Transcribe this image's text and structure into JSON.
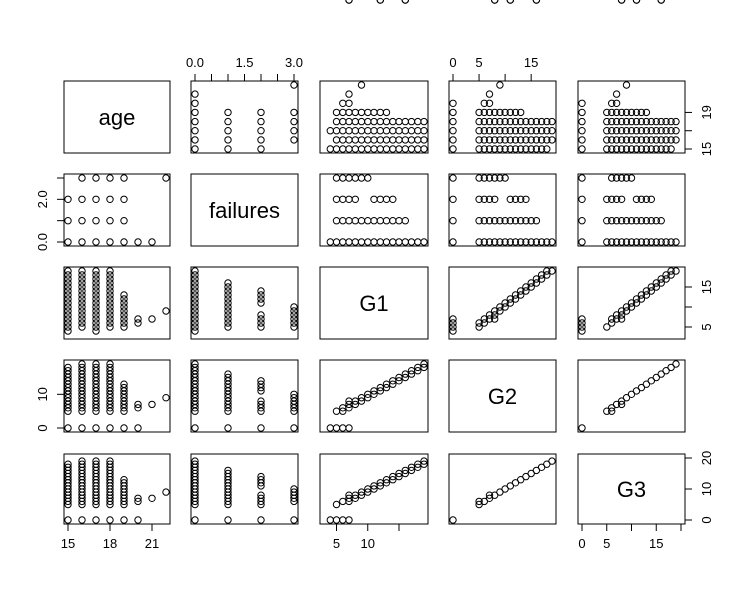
{
  "chart_data": {
    "type": "scatter",
    "title": "",
    "variables": [
      {
        "name": "age",
        "range": [
          15,
          22
        ],
        "bottom_ticks": [
          "15",
          "18",
          "21"
        ],
        "bottom_tick_values": [
          15,
          18,
          21
        ],
        "right_ticks": [
          "15",
          "19"
        ],
        "right_tick_values": [
          15,
          19
        ],
        "minor_right_ticks": [
          17
        ]
      },
      {
        "name": "failures",
        "range": [
          0,
          3
        ],
        "top_ticks": [
          "0.0",
          "1.5",
          "3.0"
        ],
        "top_tick_values": [
          0,
          1.5,
          3
        ],
        "minor_top_ticks": [
          0.5,
          1,
          2,
          2.5
        ],
        "left_ticks": [
          "0.0",
          "2.0"
        ],
        "left_tick_values": [
          0,
          2
        ],
        "minor_left_ticks": [
          1,
          3
        ]
      },
      {
        "name": "G1",
        "range": [
          3,
          19
        ],
        "bottom_ticks": [
          "5",
          "10"
        ],
        "bottom_tick_values": [
          5,
          10
        ],
        "minor_bottom_ticks": [
          15
        ],
        "right_ticks": [
          "5",
          "15"
        ],
        "right_tick_values": [
          5,
          15
        ],
        "minor_right_ticks": [
          10
        ]
      },
      {
        "name": "G2",
        "range": [
          0,
          19
        ],
        "top_ticks": [
          "0",
          "5",
          "15"
        ],
        "top_tick_values": [
          0,
          5,
          15
        ],
        "minor_top_ticks": [
          10
        ],
        "left_ticks": [
          "0",
          "10"
        ],
        "left_tick_values": [
          0,
          10
        ]
      },
      {
        "name": "G3",
        "range": [
          0,
          20
        ],
        "bottom_ticks": [
          "0",
          "5",
          "15"
        ],
        "bottom_tick_values": [
          0,
          5,
          15
        ],
        "minor_bottom_ticks": [
          10,
          20
        ],
        "right_ticks": [
          "0",
          "10",
          "20"
        ],
        "right_tick_values": [
          0,
          10,
          20
        ]
      }
    ],
    "observations": {
      "age": [
        15,
        15,
        15,
        15,
        15,
        15,
        15,
        15,
        15,
        15,
        15,
        15,
        15,
        15,
        15,
        15,
        15,
        15,
        15,
        15,
        15,
        15,
        15,
        15,
        15,
        15,
        15,
        15,
        15,
        15,
        15,
        15,
        15,
        15,
        15,
        15,
        15,
        15,
        15,
        15,
        15,
        15,
        15,
        16,
        16,
        16,
        16,
        16,
        16,
        16,
        16,
        16,
        16,
        16,
        16,
        16,
        16,
        16,
        16,
        16,
        16,
        16,
        16,
        16,
        16,
        16,
        16,
        16,
        16,
        16,
        16,
        16,
        16,
        16,
        16,
        16,
        16,
        16,
        16,
        16,
        16,
        16,
        16,
        16,
        16,
        16,
        16,
        16,
        16,
        16,
        16,
        16,
        16,
        16,
        16,
        16,
        16,
        16,
        17,
        17,
        17,
        17,
        17,
        17,
        17,
        17,
        17,
        17,
        17,
        17,
        17,
        17,
        17,
        17,
        17,
        17,
        17,
        17,
        17,
        17,
        17,
        17,
        17,
        17,
        17,
        17,
        17,
        17,
        17,
        17,
        17,
        17,
        17,
        17,
        17,
        17,
        17,
        17,
        17,
        17,
        17,
        17,
        17,
        17,
        17,
        17,
        17,
        17,
        17,
        17,
        17,
        17,
        17,
        17,
        17,
        17,
        17,
        18,
        18,
        18,
        18,
        18,
        18,
        18,
        18,
        18,
        18,
        18,
        18,
        18,
        18,
        18,
        18,
        18,
        18,
        18,
        18,
        18,
        18,
        18,
        18,
        18,
        18,
        18,
        18,
        18,
        18,
        18,
        18,
        18,
        18,
        18,
        18,
        18,
        18,
        19,
        19,
        19,
        19,
        19,
        19,
        19,
        19,
        19,
        19,
        19,
        19,
        19,
        19,
        19,
        19,
        19,
        19,
        20,
        20,
        20,
        21,
        22
      ],
      "failures": [
        0,
        0,
        0,
        0,
        0,
        0,
        0,
        0,
        0,
        0,
        0,
        0,
        0,
        0,
        0,
        0,
        0,
        0,
        0,
        0,
        0,
        0,
        0,
        0,
        0,
        0,
        0,
        0,
        0,
        0,
        0,
        0,
        0,
        0,
        0,
        0,
        0,
        0,
        0,
        0,
        0,
        1,
        2,
        0,
        0,
        0,
        0,
        0,
        0,
        0,
        0,
        0,
        0,
        0,
        0,
        0,
        0,
        0,
        0,
        0,
        0,
        0,
        0,
        0,
        0,
        0,
        0,
        0,
        0,
        0,
        0,
        0,
        0,
        0,
        0,
        0,
        0,
        0,
        0,
        0,
        0,
        0,
        0,
        0,
        0,
        0,
        0,
        0,
        0,
        1,
        1,
        2,
        2,
        2,
        3,
        3,
        3,
        3,
        0,
        0,
        0,
        0,
        0,
        0,
        0,
        0,
        0,
        0,
        0,
        0,
        0,
        0,
        0,
        0,
        0,
        0,
        0,
        0,
        0,
        0,
        0,
        0,
        0,
        0,
        0,
        0,
        0,
        0,
        0,
        0,
        0,
        0,
        0,
        0,
        0,
        0,
        0,
        0,
        0,
        0,
        0,
        0,
        1,
        1,
        1,
        1,
        1,
        1,
        1,
        1,
        2,
        2,
        2,
        3,
        3,
        3,
        3,
        0,
        0,
        0,
        0,
        0,
        0,
        0,
        0,
        0,
        0,
        0,
        0,
        0,
        0,
        0,
        0,
        0,
        0,
        0,
        0,
        0,
        1,
        1,
        1,
        1,
        1,
        1,
        1,
        1,
        1,
        1,
        2,
        2,
        2,
        2,
        3,
        3,
        3,
        0,
        0,
        0,
        0,
        0,
        0,
        0,
        0,
        0,
        1,
        1,
        1,
        1,
        1,
        2,
        2,
        3,
        3,
        0,
        0,
        0,
        0,
        3
      ],
      "G1": [
        4,
        5,
        6,
        7,
        8,
        9,
        10,
        11,
        12,
        13,
        14,
        15,
        16,
        17,
        18,
        19,
        7,
        8,
        9,
        10,
        11,
        12,
        13,
        14,
        15,
        16,
        17,
        8,
        9,
        10,
        11,
        12,
        13,
        14,
        15,
        10,
        11,
        12,
        6,
        5,
        18,
        9,
        7,
        5,
        6,
        7,
        8,
        9,
        10,
        11,
        12,
        13,
        14,
        15,
        16,
        17,
        18,
        19,
        7,
        8,
        9,
        10,
        11,
        12,
        13,
        14,
        15,
        16,
        17,
        8,
        9,
        10,
        11,
        12,
        13,
        14,
        15,
        10,
        11,
        12,
        13,
        6,
        5,
        18,
        19,
        9,
        11,
        14,
        5,
        6,
        7,
        5,
        6,
        7,
        6,
        7,
        8,
        8,
        5,
        6,
        7,
        8,
        9,
        10,
        11,
        12,
        13,
        14,
        15,
        16,
        17,
        18,
        19,
        7,
        8,
        9,
        10,
        11,
        12,
        13,
        14,
        15,
        16,
        17,
        8,
        9,
        10,
        11,
        12,
        13,
        14,
        15,
        10,
        11,
        12,
        13,
        6,
        5,
        18,
        9,
        7,
        4,
        5,
        6,
        7,
        8,
        9,
        10,
        11,
        12,
        6,
        7,
        8,
        6,
        7,
        8,
        8,
        5,
        6,
        7,
        8,
        9,
        10,
        11,
        12,
        13,
        14,
        15,
        16,
        17,
        18,
        19,
        7,
        8,
        9,
        10,
        11,
        12,
        13,
        14,
        15,
        16,
        5,
        6,
        7,
        8,
        9,
        10,
        11,
        12,
        13,
        14,
        5,
        6,
        7,
        8,
        6,
        7,
        8,
        5,
        6,
        7,
        8,
        9,
        10,
        11,
        12,
        13,
        6,
        7,
        8,
        9,
        10,
        6,
        7,
        6,
        7,
        9,
        12,
        16,
        7
      ],
      "G2": [
        0,
        0,
        5,
        6,
        7,
        8,
        9,
        10,
        11,
        12,
        13,
        14,
        15,
        16,
        17,
        18,
        7,
        8,
        9,
        10,
        11,
        12,
        13,
        14,
        15,
        16,
        17,
        8,
        9,
        10,
        11,
        12,
        13,
        14,
        15,
        10,
        11,
        12,
        6,
        5,
        18,
        8,
        6,
        5,
        6,
        7,
        8,
        9,
        10,
        11,
        12,
        13,
        14,
        15,
        16,
        17,
        18,
        19,
        7,
        8,
        9,
        10,
        11,
        12,
        13,
        14,
        15,
        16,
        17,
        8,
        9,
        10,
        11,
        12,
        13,
        14,
        15,
        10,
        11,
        12,
        13,
        6,
        5,
        18,
        19,
        9,
        11,
        14,
        0,
        0,
        0,
        5,
        6,
        7,
        5,
        7,
        8,
        7,
        5,
        6,
        7,
        8,
        9,
        10,
        11,
        12,
        13,
        14,
        15,
        16,
        17,
        18,
        19,
        7,
        8,
        9,
        10,
        11,
        12,
        13,
        14,
        15,
        16,
        17,
        8,
        9,
        10,
        11,
        12,
        13,
        14,
        15,
        10,
        11,
        12,
        13,
        6,
        5,
        18,
        9,
        0,
        0,
        5,
        6,
        7,
        8,
        9,
        10,
        11,
        12,
        0,
        7,
        8,
        0,
        7,
        8,
        8,
        5,
        6,
        7,
        8,
        9,
        10,
        11,
        12,
        13,
        14,
        15,
        16,
        17,
        18,
        19,
        7,
        8,
        9,
        10,
        11,
        12,
        13,
        14,
        15,
        16,
        5,
        6,
        7,
        8,
        9,
        10,
        11,
        12,
        13,
        14,
        0,
        6,
        7,
        8,
        0,
        7,
        8,
        5,
        6,
        7,
        8,
        9,
        10,
        11,
        12,
        13,
        6,
        7,
        8,
        9,
        10,
        0,
        7,
        6,
        7,
        9,
        11,
        16,
        8
      ],
      "G3": [
        0,
        0,
        6,
        6,
        7,
        8,
        9,
        10,
        11,
        12,
        13,
        14,
        15,
        16,
        17,
        18,
        7,
        8,
        9,
        10,
        11,
        12,
        13,
        14,
        15,
        16,
        17,
        8,
        9,
        10,
        11,
        12,
        13,
        14,
        15,
        10,
        11,
        12,
        6,
        5,
        18,
        8,
        6,
        5,
        6,
        7,
        8,
        9,
        10,
        11,
        12,
        13,
        14,
        15,
        16,
        17,
        18,
        19,
        7,
        8,
        9,
        10,
        11,
        12,
        13,
        14,
        15,
        16,
        17,
        8,
        9,
        10,
        11,
        12,
        13,
        14,
        15,
        10,
        11,
        12,
        13,
        6,
        5,
        18,
        19,
        9,
        11,
        14,
        0,
        0,
        0,
        5,
        6,
        7,
        6,
        7,
        8,
        8,
        5,
        6,
        7,
        8,
        9,
        10,
        11,
        12,
        13,
        14,
        15,
        16,
        17,
        18,
        19,
        7,
        8,
        9,
        10,
        11,
        12,
        13,
        14,
        15,
        16,
        17,
        8,
        9,
        10,
        11,
        12,
        13,
        14,
        15,
        10,
        11,
        12,
        13,
        6,
        5,
        18,
        9,
        0,
        0,
        5,
        6,
        7,
        8,
        9,
        10,
        11,
        12,
        0,
        7,
        8,
        0,
        7,
        8,
        8,
        5,
        6,
        7,
        8,
        9,
        10,
        11,
        12,
        13,
        14,
        15,
        16,
        17,
        18,
        19,
        7,
        8,
        9,
        10,
        11,
        12,
        13,
        14,
        15,
        16,
        5,
        6,
        7,
        8,
        9,
        10,
        11,
        12,
        13,
        14,
        0,
        6,
        7,
        8,
        0,
        7,
        8,
        5,
        6,
        7,
        8,
        9,
        10,
        11,
        12,
        13,
        6,
        7,
        8,
        9,
        10,
        0,
        7,
        6,
        7,
        9,
        11,
        16,
        8
      ]
    }
  }
}
